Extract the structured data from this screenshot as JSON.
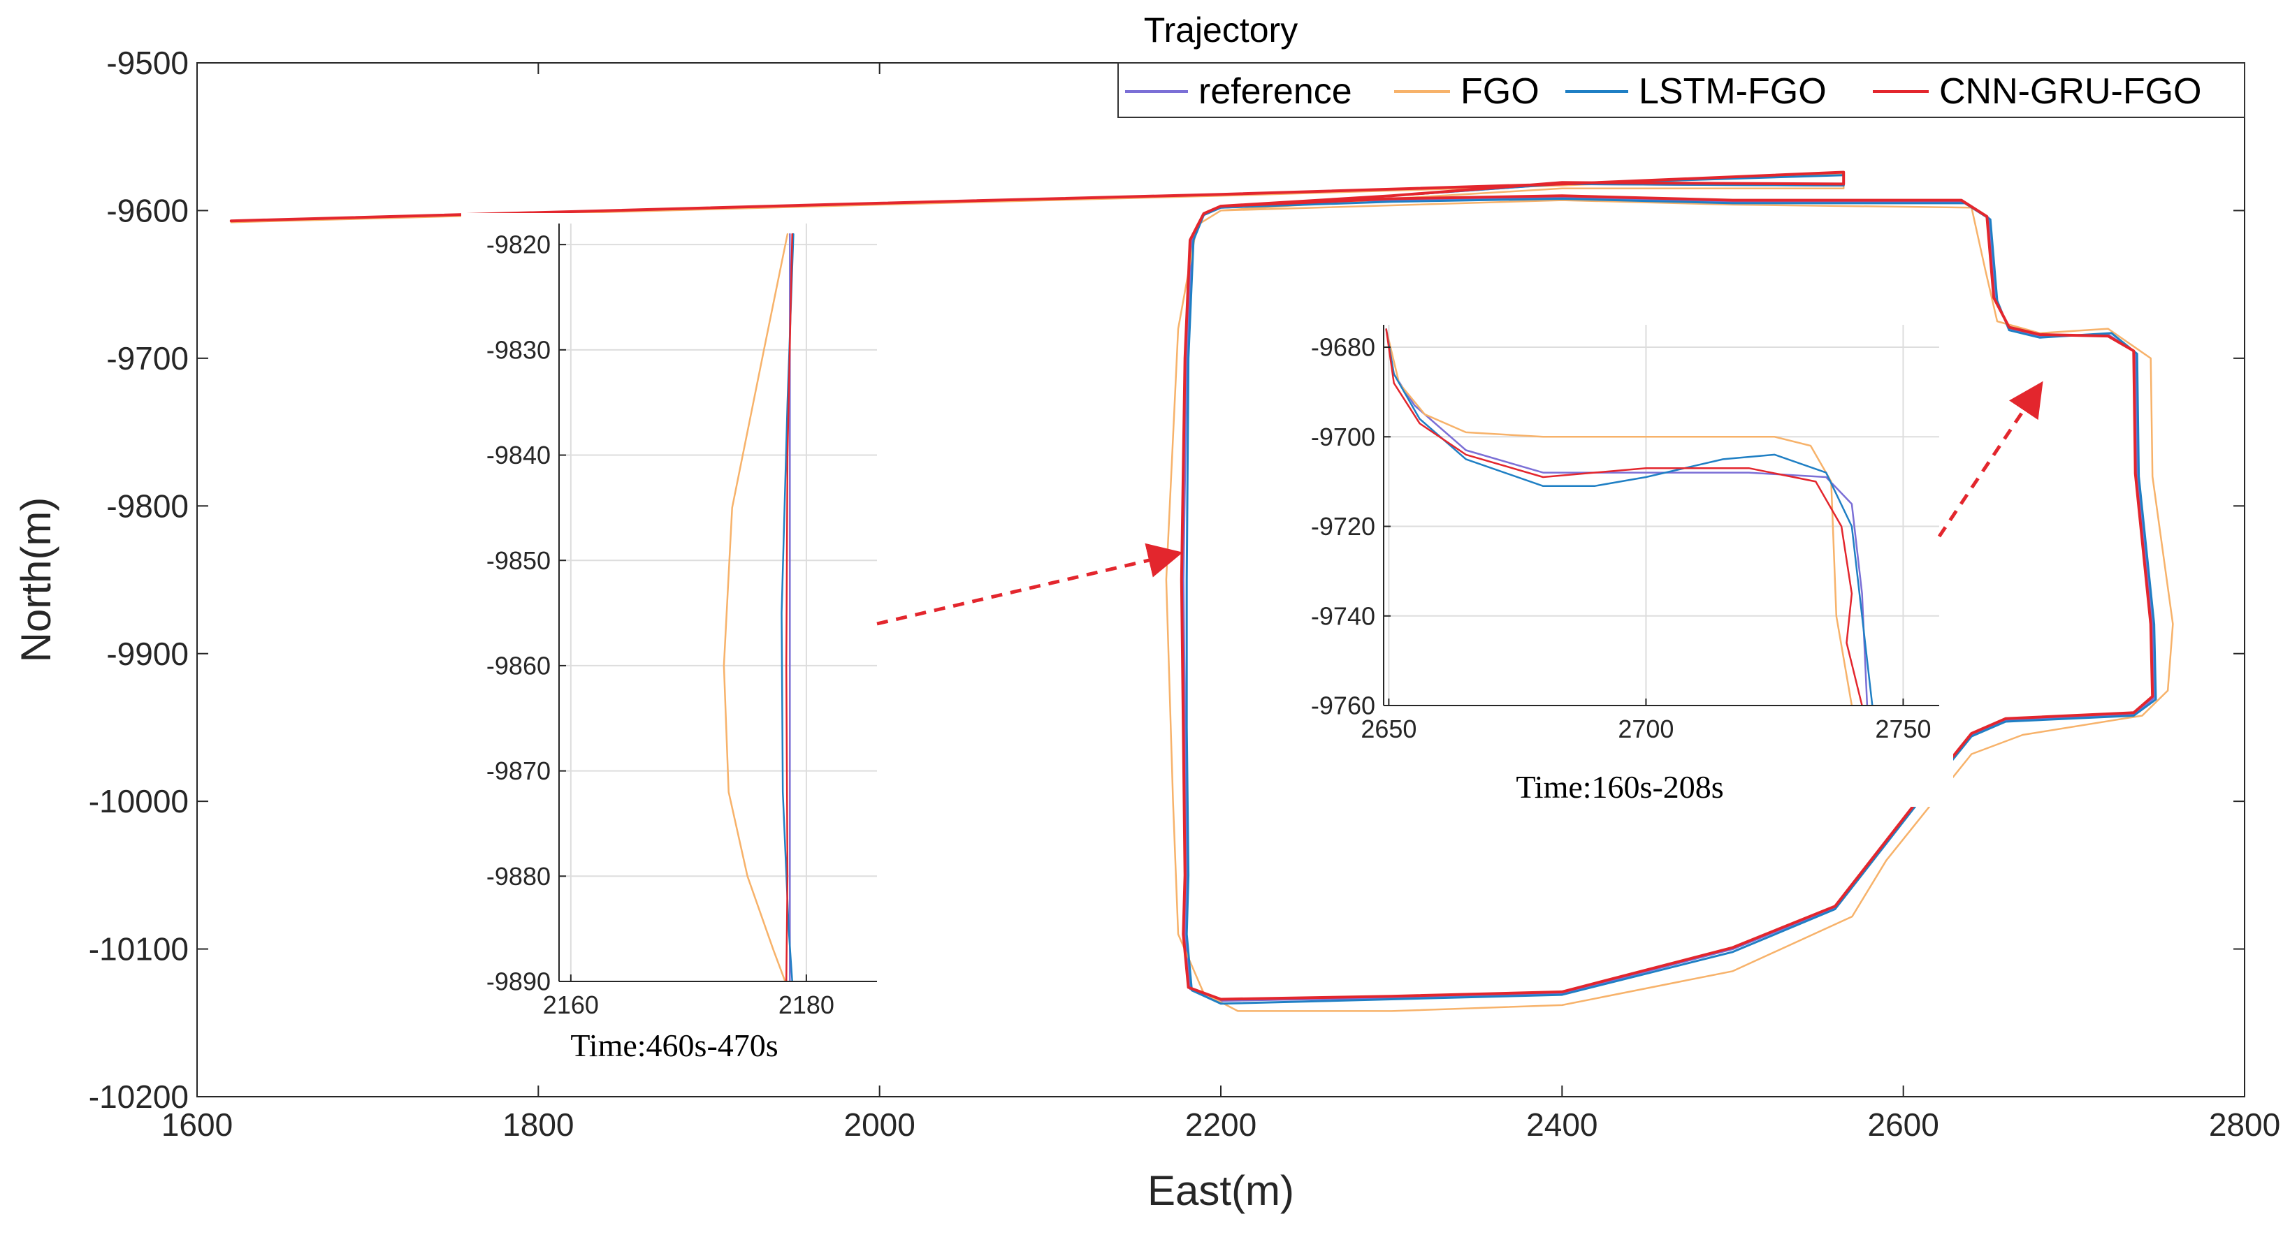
{
  "chart_data": [
    {
      "type": "line",
      "title": "Trajectory",
      "xlabel": "East(m)",
      "ylabel": "North(m)",
      "xlim": [
        1600,
        2800
      ],
      "ylim": [
        -10200,
        -9500
      ],
      "xticks": [
        1600,
        1800,
        2000,
        2200,
        2400,
        2600,
        2800
      ],
      "yticks": [
        -9500,
        -9600,
        -9700,
        -9800,
        -9900,
        -10000,
        -10100,
        -10200
      ],
      "grid": false,
      "legend": {
        "placement": "top-right",
        "orientation": "horizontal"
      },
      "colors": {
        "reference": "#7b6fd6",
        "FGO": "#f7b26a",
        "LSTM-FGO": "#1f7fc4",
        "CNN-GRU-FGO": "#e3262d",
        "arrow": "#e3262d"
      },
      "series": [
        {
          "name": "reference",
          "color": "#7b6fd6",
          "width": 3,
          "points": [
            [
              1620,
              -9607
            ],
            [
              2000,
              -9595
            ],
            [
              2200,
              -9589
            ],
            [
              2400,
              -9582
            ],
            [
              2565,
              -9575
            ],
            [
              2565,
              -9583
            ],
            [
              2400,
              -9582
            ],
            [
              2300,
              -9590
            ],
            [
              2200,
              -9598
            ],
            [
              2190,
              -9603
            ],
            [
              2183,
              -9620
            ],
            [
              2180,
              -9700
            ],
            [
              2178,
              -9850
            ],
            [
              2179,
              -9950
            ],
            [
              2180,
              -10050
            ],
            [
              2179,
              -10090
            ],
            [
              2182,
              -10127
            ],
            [
              2200,
              -10135
            ],
            [
              2300,
              -10133
            ],
            [
              2400,
              -10130
            ],
            [
              2500,
              -10100
            ],
            [
              2560,
              -10072
            ],
            [
              2610,
              -9998
            ],
            [
              2640,
              -9955
            ],
            [
              2660,
              -9945
            ],
            [
              2735,
              -9941
            ],
            [
              2747,
              -9930
            ],
            [
              2746,
              -9880
            ],
            [
              2737,
              -9779
            ],
            [
              2736,
              -9696
            ],
            [
              2720,
              -9684
            ],
            [
              2680,
              -9685
            ],
            [
              2662,
              -9680
            ],
            [
              2654,
              -9660
            ],
            [
              2650,
              -9605
            ],
            [
              2635,
              -9594
            ],
            [
              2500,
              -9594
            ],
            [
              2400,
              -9591
            ],
            [
              2300,
              -9593
            ],
            [
              2200,
              -9598
            ]
          ]
        },
        {
          "name": "FGO",
          "color": "#f7b26a",
          "width": 2.5,
          "points": [
            [
              1620,
              -9608
            ],
            [
              2000,
              -9596
            ],
            [
              2200,
              -9590
            ],
            [
              2400,
              -9583
            ],
            [
              2565,
              -9575
            ],
            [
              2565,
              -9585
            ],
            [
              2400,
              -9585
            ],
            [
              2300,
              -9592
            ],
            [
              2200,
              -9600
            ],
            [
              2186,
              -9610
            ],
            [
              2175,
              -9680
            ],
            [
              2168,
              -9850
            ],
            [
              2172,
              -10000
            ],
            [
              2175,
              -10090
            ],
            [
              2190,
              -10130
            ],
            [
              2210,
              -10142
            ],
            [
              2300,
              -10142
            ],
            [
              2400,
              -10138
            ],
            [
              2500,
              -10115
            ],
            [
              2570,
              -10078
            ],
            [
              2590,
              -10040
            ],
            [
              2640,
              -9968
            ],
            [
              2670,
              -9955
            ],
            [
              2740,
              -9942
            ],
            [
              2755,
              -9925
            ],
            [
              2758,
              -9880
            ],
            [
              2746,
              -9780
            ],
            [
              2745,
              -9700
            ],
            [
              2720,
              -9680
            ],
            [
              2680,
              -9683
            ],
            [
              2655,
              -9675
            ],
            [
              2648,
              -9640
            ],
            [
              2640,
              -9598
            ],
            [
              2500,
              -9596
            ],
            [
              2400,
              -9593
            ],
            [
              2200,
              -9600
            ]
          ]
        },
        {
          "name": "LSTM-FGO",
          "color": "#1f7fc4",
          "width": 3,
          "points": [
            [
              1620,
              -9607
            ],
            [
              2000,
              -9595
            ],
            [
              2200,
              -9589
            ],
            [
              2400,
              -9582
            ],
            [
              2565,
              -9576
            ],
            [
              2565,
              -9583
            ],
            [
              2400,
              -9582
            ],
            [
              2300,
              -9590
            ],
            [
              2200,
              -9598
            ],
            [
              2190,
              -9603
            ],
            [
              2184,
              -9620
            ],
            [
              2181,
              -9700
            ],
            [
              2180,
              -9850
            ],
            [
              2180,
              -9950
            ],
            [
              2181,
              -10050
            ],
            [
              2180,
              -10090
            ],
            [
              2183,
              -10128
            ],
            [
              2200,
              -10137
            ],
            [
              2300,
              -10134
            ],
            [
              2400,
              -10131
            ],
            [
              2500,
              -10102
            ],
            [
              2560,
              -10073
            ],
            [
              2610,
              -9999
            ],
            [
              2640,
              -9956
            ],
            [
              2660,
              -9946
            ],
            [
              2735,
              -9942
            ],
            [
              2748,
              -9931
            ],
            [
              2747,
              -9880
            ],
            [
              2738,
              -9780
            ],
            [
              2737,
              -9697
            ],
            [
              2722,
              -9683
            ],
            [
              2680,
              -9686
            ],
            [
              2662,
              -9681
            ],
            [
              2655,
              -9661
            ],
            [
              2651,
              -9606
            ],
            [
              2636,
              -9595
            ],
            [
              2500,
              -9595
            ],
            [
              2400,
              -9592
            ],
            [
              2300,
              -9594
            ],
            [
              2200,
              -9598
            ]
          ]
        },
        {
          "name": "CNN-GRU-FGO",
          "color": "#e3262d",
          "width": 4,
          "points": [
            [
              1620,
              -9607
            ],
            [
              2000,
              -9595
            ],
            [
              2200,
              -9589
            ],
            [
              2400,
              -9582
            ],
            [
              2565,
              -9574
            ],
            [
              2565,
              -9582
            ],
            [
              2400,
              -9581
            ],
            [
              2300,
              -9590
            ],
            [
              2200,
              -9597
            ],
            [
              2190,
              -9602
            ],
            [
              2182,
              -9620
            ],
            [
              2179,
              -9700
            ],
            [
              2177,
              -9850
            ],
            [
              2178,
              -9950
            ],
            [
              2179,
              -10050
            ],
            [
              2178,
              -10090
            ],
            [
              2181,
              -10126
            ],
            [
              2200,
              -10134
            ],
            [
              2300,
              -10132
            ],
            [
              2400,
              -10129
            ],
            [
              2500,
              -10099
            ],
            [
              2560,
              -10071
            ],
            [
              2610,
              -9997
            ],
            [
              2640,
              -9954
            ],
            [
              2660,
              -9944
            ],
            [
              2735,
              -9940
            ],
            [
              2746,
              -9929
            ],
            [
              2745,
              -9880
            ],
            [
              2736,
              -9778
            ],
            [
              2735,
              -9695
            ],
            [
              2720,
              -9685
            ],
            [
              2680,
              -9684
            ],
            [
              2662,
              -9679
            ],
            [
              2653,
              -9659
            ],
            [
              2649,
              -9604
            ],
            [
              2634,
              -9593
            ],
            [
              2500,
              -9593
            ],
            [
              2400,
              -9590
            ],
            [
              2300,
              -9592
            ],
            [
              2200,
              -9597
            ]
          ]
        }
      ]
    },
    {
      "type": "line",
      "title": "Time:460s-470s",
      "xlim": [
        2159,
        2186
      ],
      "ylim": [
        -9890,
        -9818
      ],
      "xticks": [
        2160,
        2180
      ],
      "yticks": [
        -9820,
        -9830,
        -9840,
        -9850,
        -9860,
        -9870,
        -9880,
        -9890
      ],
      "grid": true,
      "series": [
        {
          "name": "reference",
          "color": "#7b6fd6",
          "points": [
            [
              2178.6,
              -9819
            ],
            [
              2178.6,
              -9890
            ]
          ]
        },
        {
          "name": "FGO",
          "color": "#f7b26a",
          "points": [
            [
              2178.4,
              -9819
            ],
            [
              2176.4,
              -9830
            ],
            [
              2173.7,
              -9845
            ],
            [
              2173.0,
              -9860
            ],
            [
              2173.4,
              -9872
            ],
            [
              2175.0,
              -9880
            ],
            [
              2177.2,
              -9887
            ],
            [
              2178.2,
              -9890
            ]
          ]
        },
        {
          "name": "LSTM-FGO",
          "color": "#1f7fc4",
          "points": [
            [
              2178.9,
              -9819
            ],
            [
              2178.4,
              -9835
            ],
            [
              2177.9,
              -9855
            ],
            [
              2178.0,
              -9872
            ],
            [
              2178.5,
              -9885
            ],
            [
              2178.8,
              -9890
            ]
          ]
        },
        {
          "name": "CNN-GRU-FGO",
          "color": "#e3262d",
          "points": [
            [
              2178.8,
              -9819
            ],
            [
              2178.4,
              -9840
            ],
            [
              2178.3,
              -9860
            ],
            [
              2178.4,
              -9880
            ],
            [
              2178.3,
              -9890
            ]
          ]
        }
      ]
    },
    {
      "type": "line",
      "title": "Time:160s-208s",
      "xlim": [
        2649,
        2757
      ],
      "ylim": [
        -9760,
        -9675
      ],
      "xticks": [
        2650,
        2700,
        2750
      ],
      "yticks": [
        -9680,
        -9700,
        -9720,
        -9740,
        -9760
      ],
      "grid": true,
      "series": [
        {
          "name": "reference",
          "color": "#7b6fd6",
          "points": [
            [
              2649.5,
              -9676
            ],
            [
              2651,
              -9686
            ],
            [
              2655,
              -9693
            ],
            [
              2665,
              -9703
            ],
            [
              2680,
              -9708
            ],
            [
              2700,
              -9708
            ],
            [
              2720,
              -9708
            ],
            [
              2735,
              -9709
            ],
            [
              2740,
              -9715
            ],
            [
              2742,
              -9735
            ],
            [
              2743,
              -9760
            ]
          ]
        },
        {
          "name": "FGO",
          "color": "#f7b26a",
          "points": [
            [
              2649.5,
              -9676
            ],
            [
              2652,
              -9688
            ],
            [
              2657,
              -9695
            ],
            [
              2665,
              -9699
            ],
            [
              2680,
              -9700
            ],
            [
              2700,
              -9700
            ],
            [
              2725,
              -9700
            ],
            [
              2732,
              -9702
            ],
            [
              2736,
              -9710
            ],
            [
              2737,
              -9740
            ],
            [
              2740,
              -9760
            ]
          ]
        },
        {
          "name": "LSTM-FGO",
          "color": "#1f7fc4",
          "points": [
            [
              2649.5,
              -9676
            ],
            [
              2651,
              -9686
            ],
            [
              2656,
              -9696
            ],
            [
              2665,
              -9705
            ],
            [
              2680,
              -9711
            ],
            [
              2690,
              -9711
            ],
            [
              2700,
              -9709
            ],
            [
              2715,
              -9705
            ],
            [
              2725,
              -9704
            ],
            [
              2735,
              -9708
            ],
            [
              2740,
              -9720
            ],
            [
              2742,
              -9740
            ],
            [
              2744,
              -9760
            ]
          ]
        },
        {
          "name": "CNN-GRU-FGO",
          "color": "#e3262d",
          "points": [
            [
              2649.5,
              -9676
            ],
            [
              2651,
              -9688
            ],
            [
              2656,
              -9697
            ],
            [
              2665,
              -9704
            ],
            [
              2680,
              -9709
            ],
            [
              2700,
              -9707
            ],
            [
              2720,
              -9707
            ],
            [
              2733,
              -9710
            ],
            [
              2738,
              -9720
            ],
            [
              2740,
              -9735
            ],
            [
              2739,
              -9746
            ],
            [
              2742,
              -9760
            ]
          ]
        }
      ]
    }
  ]
}
